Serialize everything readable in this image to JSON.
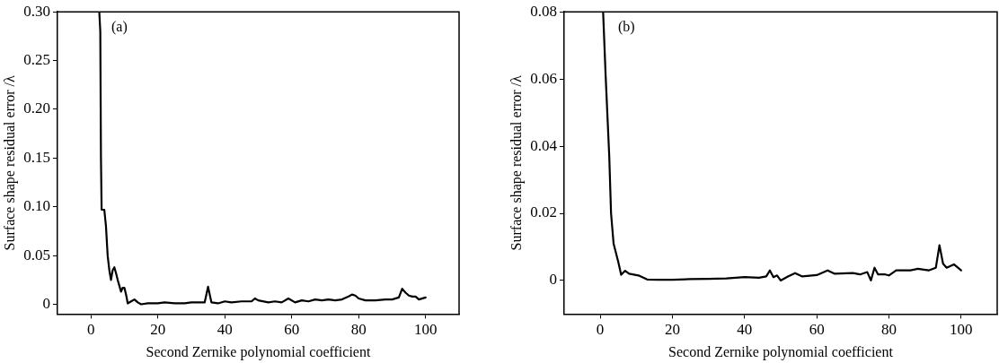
{
  "chart_data": [
    {
      "type": "line",
      "xlabel": "Second Zernike polynomial coefficient",
      "ylabel": "Surface shape residual error /λ",
      "annotations": [
        "(a)"
      ],
      "xlim": [
        -10,
        110
      ],
      "ylim": [
        -0.01,
        0.3
      ],
      "xticks": [
        0,
        20,
        40,
        60,
        80,
        100
      ],
      "yticks": [
        0,
        0.05,
        {
          "value": 0.1,
          "label": "0.10"
        },
        0.15,
        {
          "value": 0.2,
          "label": "0.20"
        },
        0.25,
        {
          "value": 0.3,
          "label": "0.30"
        }
      ],
      "grid": false,
      "legend": false,
      "marker": "none",
      "line_style": "solid",
      "series": [
        {
          "color": "#000000",
          "x": [
            2.5,
            2.8,
            3,
            3.2,
            4,
            4.5,
            5,
            5.5,
            6,
            6.5,
            7,
            7.5,
            8,
            9,
            9.5,
            10,
            10.5,
            11,
            12,
            13,
            14,
            15,
            17,
            20,
            22,
            25,
            28,
            30,
            34,
            35,
            36,
            38,
            40,
            42,
            45,
            48,
            49,
            50,
            53,
            55,
            57,
            59,
            61,
            63,
            65,
            67,
            69,
            71,
            73,
            75,
            77,
            78,
            79,
            80,
            82,
            85,
            88,
            90,
            92,
            93,
            94,
            95,
            96,
            97,
            98,
            100
          ],
          "values": [
            0.3,
            0.28,
            0.15,
            0.097,
            0.097,
            0.08,
            0.05,
            0.035,
            0.025,
            0.035,
            0.038,
            0.032,
            0.025,
            0.013,
            0.017,
            0.017,
            0.01,
            0.001,
            0.003,
            0.005,
            0.002,
            0,
            0.001,
            0.001,
            0.002,
            0.001,
            0.001,
            0.002,
            0.002,
            0.018,
            0.002,
            0.001,
            0.003,
            0.002,
            0.003,
            0.003,
            0.006,
            0.004,
            0.002,
            0.003,
            0.002,
            0.006,
            0.002,
            0.004,
            0.003,
            0.005,
            0.004,
            0.005,
            0.004,
            0.005,
            0.008,
            0.01,
            0.009,
            0.006,
            0.004,
            0.004,
            0.005,
            0.005,
            0.007,
            0.016,
            0.012,
            0.009,
            0.008,
            0.008,
            0.005,
            0.007
          ]
        }
      ]
    },
    {
      "type": "line",
      "xlabel": "Second Zernike polynomial coefficient",
      "ylabel": "Surface shape residual error /λ",
      "annotations": [
        "(b)"
      ],
      "xlim": [
        -10,
        110
      ],
      "ylim": [
        -0.01,
        0.08
      ],
      "xticks": [
        0,
        20,
        40,
        60,
        80,
        100
      ],
      "yticks": [
        0,
        0.02,
        0.04,
        0.06,
        0.08
      ],
      "grid": false,
      "legend": false,
      "marker": "none",
      "line_style": "solid",
      "series": [
        {
          "color": "#000000",
          "x": [
            0.8,
            1.5,
            2.5,
            3,
            3.7,
            5,
            5.8,
            6.9,
            8,
            10.6,
            13,
            16,
            20,
            25,
            30,
            35,
            40,
            44,
            46,
            47,
            48,
            49,
            50,
            52,
            54,
            56,
            60,
            63,
            65,
            70,
            72,
            74,
            75,
            76,
            77,
            79,
            80,
            82,
            86,
            88,
            91,
            93,
            94,
            95,
            96,
            98,
            100
          ],
          "values": [
            0.08,
            0.061,
            0.037,
            0.02,
            0.011,
            0.0055,
            0.0017,
            0.0029,
            0.002,
            0.0015,
            0.0003,
            0.0002,
            0.0002,
            0.0004,
            0.0005,
            0.0006,
            0.001,
            0.0008,
            0.0012,
            0.003,
            0.001,
            0.0015,
            0,
            0.0012,
            0.0022,
            0.0012,
            0.0016,
            0.003,
            0.002,
            0.0022,
            0.0018,
            0.0025,
            0,
            0.0038,
            0.0018,
            0.0018,
            0.0015,
            0.003,
            0.003,
            0.0035,
            0.003,
            0.0038,
            0.0105,
            0.005,
            0.0038,
            0.0048,
            0.003
          ]
        }
      ]
    }
  ]
}
